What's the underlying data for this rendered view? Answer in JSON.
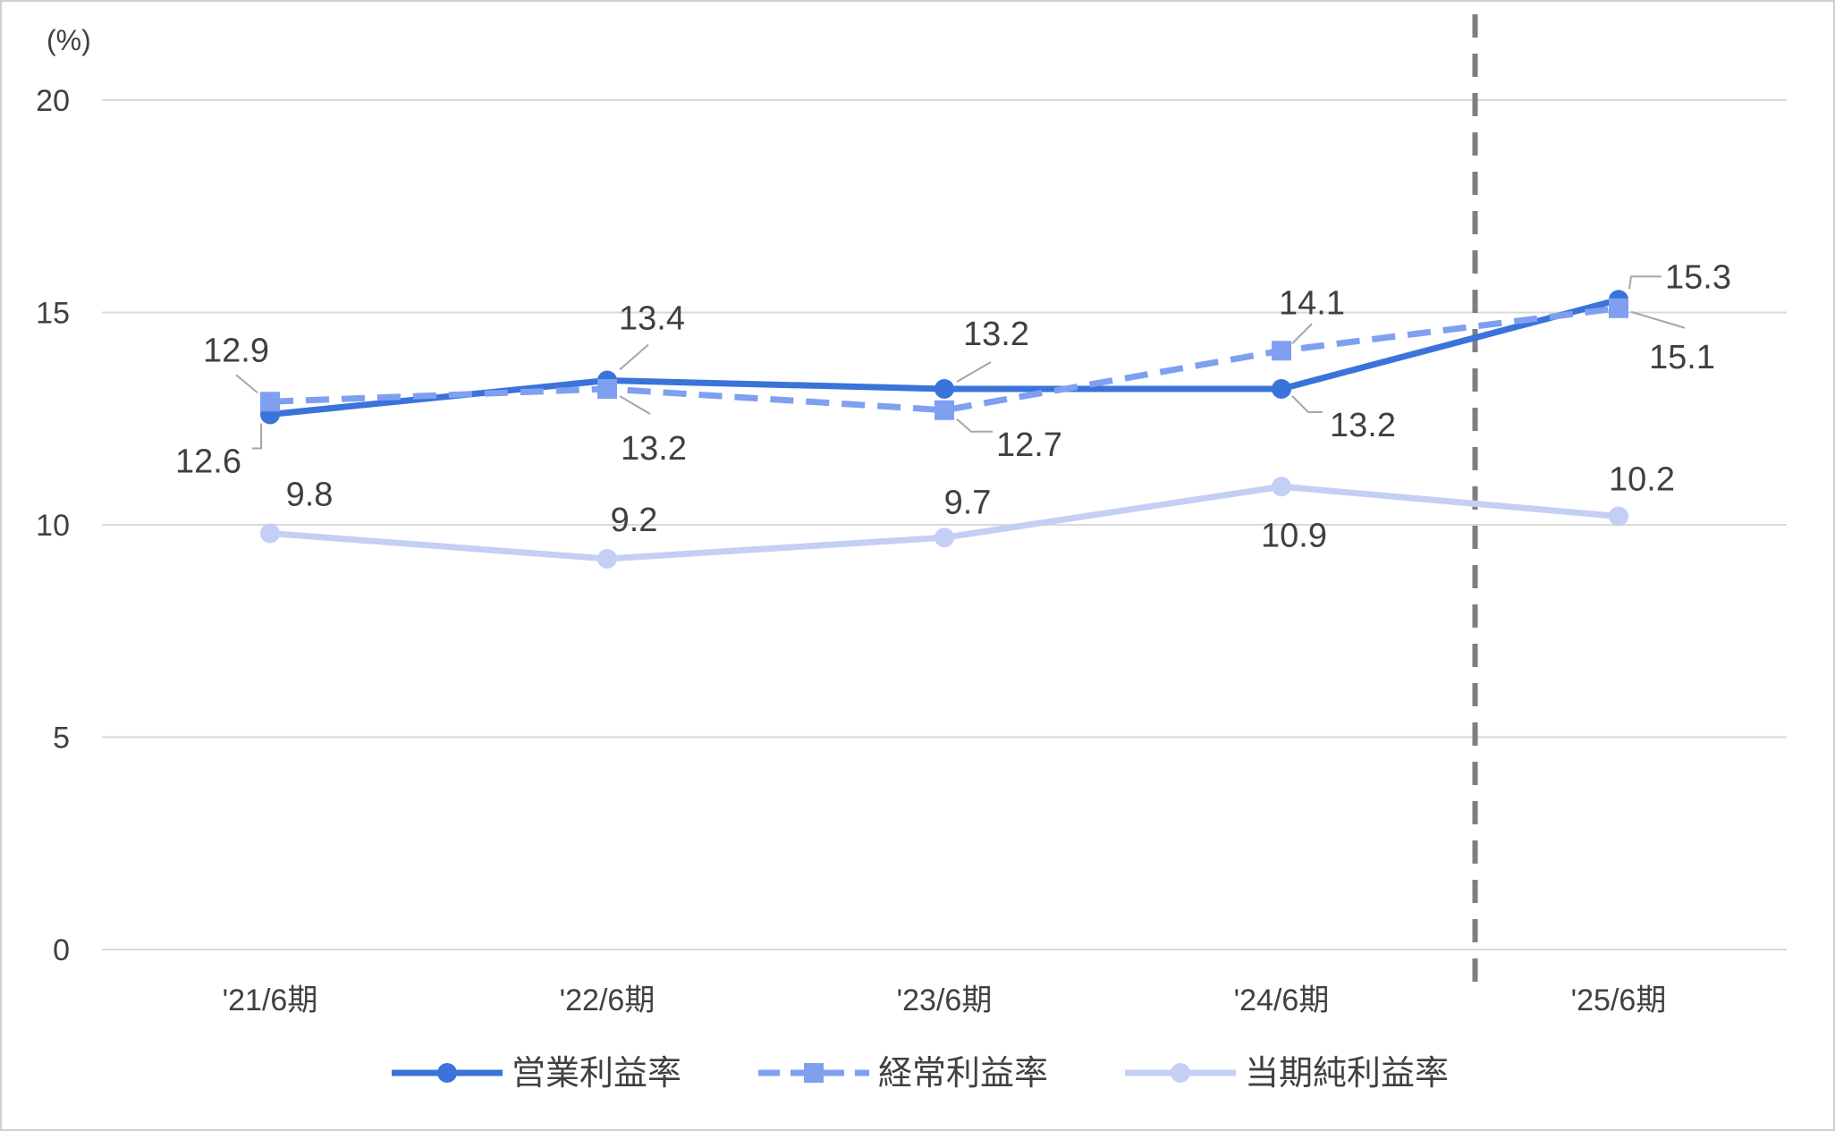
{
  "chart_data": {
    "type": "line",
    "unit_label": "(%)",
    "categories": [
      "'21/6期",
      "'22/6期",
      "'23/6期",
      "'24/6期",
      "'25/6期"
    ],
    "ylim": [
      0,
      20
    ],
    "yticks": [
      0,
      5,
      10,
      15,
      20
    ],
    "grid": true,
    "legend_position": "bottom",
    "forecast_divider": true,
    "series": [
      {
        "name": "営業利益率",
        "values": [
          12.6,
          13.4,
          13.2,
          13.2,
          15.3
        ],
        "color": "#3a73d9",
        "style": "solid",
        "marker": "circle"
      },
      {
        "name": "経常利益率",
        "values": [
          12.9,
          13.2,
          12.7,
          14.1,
          15.1
        ],
        "color": "#7f9ff0",
        "style": "dashed",
        "marker": "square"
      },
      {
        "name": "当期純利益率",
        "values": [
          9.8,
          9.2,
          9.7,
          10.9,
          10.2
        ],
        "color": "#c4cff6",
        "style": "solid",
        "marker": "circle"
      }
    ]
  }
}
